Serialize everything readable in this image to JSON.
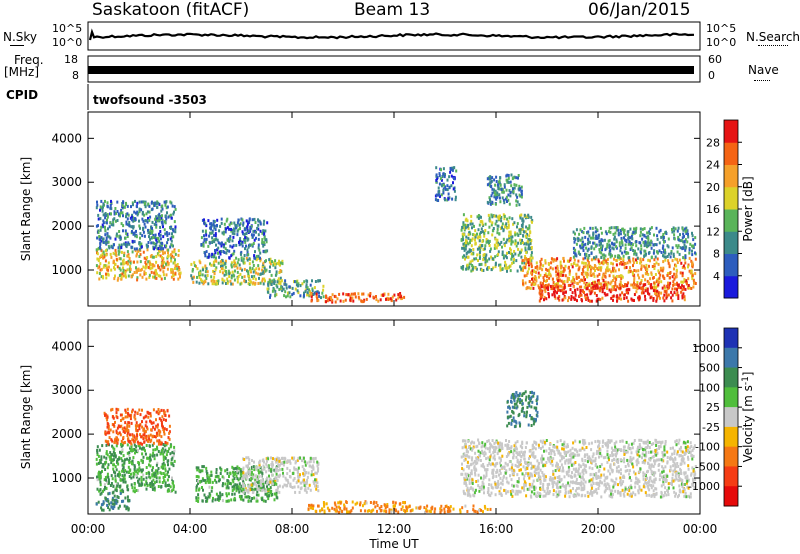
{
  "header": {
    "station": "Saskatoon (fitACF)",
    "beam": "Beam 13",
    "date": "06/Jan/2015"
  },
  "strips": {
    "nsky_label": "N.Sky",
    "nsky_ticks": [
      "10^5",
      "10^0"
    ],
    "nsearch_label": "N.Search",
    "nsearch_ticks": [
      "10^5",
      "10^0"
    ],
    "freq_label": "Freq.",
    "freq_unit": "[MHz]",
    "freq_ticks": [
      "18",
      "8"
    ],
    "nave_label": "Nave",
    "nave_ticks": [
      "60",
      "0"
    ],
    "cpid_label": "CPID",
    "cpid_value": "twofsound -3503"
  },
  "xaxis": {
    "label": "Time UT",
    "ticks": [
      "00:00",
      "04:00",
      "08:00",
      "12:00",
      "16:00",
      "20:00",
      "00:00"
    ]
  },
  "chart_data": [
    {
      "type": "heatmap",
      "title": "",
      "xlabel": "Time UT",
      "ylabel": "Slant Range [km]",
      "xlim": [
        0,
        24
      ],
      "ylim": [
        180,
        4600
      ],
      "yticks": [
        "1000",
        "2000",
        "3000",
        "4000"
      ],
      "colorbar": {
        "label": "Power [dB]",
        "ticks": [
          "4",
          "8",
          "12",
          "16",
          "20",
          "24",
          "28"
        ],
        "range": [
          0,
          32
        ],
        "colors": [
          "#1a1adc",
          "#2d5dbe",
          "#3c8a8a",
          "#5ab45a",
          "#dcd22a",
          "#f5a02a",
          "#f56414",
          "#e61414"
        ]
      },
      "regions": [
        {
          "t": [
            0.3,
            3.6
          ],
          "r": [
            800,
            1500
          ],
          "level": 20
        },
        {
          "t": [
            0.3,
            3.4
          ],
          "r": [
            1500,
            2600
          ],
          "level": 9
        },
        {
          "t": [
            4.0,
            7.6
          ],
          "r": [
            700,
            1300
          ],
          "level": 16
        },
        {
          "t": [
            4.4,
            7.0
          ],
          "r": [
            1300,
            2200
          ],
          "level": 8
        },
        {
          "t": [
            7.0,
            9.2
          ],
          "r": [
            400,
            800
          ],
          "level": 12
        },
        {
          "t": [
            8.6,
            12.4
          ],
          "r": [
            300,
            500
          ],
          "level": 26
        },
        {
          "t": [
            13.6,
            14.4
          ],
          "r": [
            2600,
            3400
          ],
          "level": 7
        },
        {
          "t": [
            14.6,
            17.4
          ],
          "r": [
            1000,
            2300
          ],
          "level": 14
        },
        {
          "t": [
            15.6,
            17.0
          ],
          "r": [
            2500,
            3200
          ],
          "level": 10
        },
        {
          "t": [
            17.0,
            23.8
          ],
          "r": [
            600,
            1300
          ],
          "level": 23
        },
        {
          "t": [
            17.6,
            23.4
          ],
          "r": [
            320,
            700
          ],
          "level": 29
        },
        {
          "t": [
            19.0,
            23.8
          ],
          "r": [
            1300,
            2000
          ],
          "level": 10
        }
      ]
    },
    {
      "type": "heatmap",
      "title": "",
      "xlabel": "Time UT",
      "ylabel": "Slant Range [km]",
      "xlim": [
        0,
        24
      ],
      "ylim": [
        180,
        4600
      ],
      "yticks": [
        "1000",
        "2000",
        "3000",
        "4000"
      ],
      "colorbar": {
        "label": "Velocity [m s^-1]",
        "ticks": [
          "1000",
          "500",
          "100",
          "25",
          "-25",
          "-100",
          "-500",
          "-1000"
        ],
        "colors": [
          "#1e32b4",
          "#3c78aa",
          "#3c8c50",
          "#50be3c",
          "#c8c8c8",
          "#f5b400",
          "#f57814",
          "#f53c14",
          "#e60a0a"
        ]
      },
      "regions": [
        {
          "t": [
            0.3,
            3.4
          ],
          "r": [
            700,
            1800
          ],
          "level": 100
        },
        {
          "t": [
            0.3,
            1.6
          ],
          "r": [
            300,
            700
          ],
          "level": 500
        },
        {
          "t": [
            4.2,
            7.4
          ],
          "r": [
            500,
            1300
          ],
          "level": 100
        },
        {
          "t": [
            6.0,
            9.0
          ],
          "r": [
            700,
            1500
          ],
          "level": 0
        },
        {
          "t": [
            8.6,
            12.4
          ],
          "r": [
            250,
            500
          ],
          "level": -100
        },
        {
          "t": [
            12.4,
            15.8
          ],
          "r": [
            250,
            400
          ],
          "level": -100
        },
        {
          "t": [
            14.6,
            23.8
          ],
          "r": [
            600,
            1900
          ],
          "level": 0
        },
        {
          "t": [
            16.4,
            17.6
          ],
          "r": [
            2200,
            3000
          ],
          "level": 500
        },
        {
          "t": [
            0.6,
            3.2
          ],
          "r": [
            1800,
            2600
          ],
          "level": -500
        }
      ]
    }
  ]
}
